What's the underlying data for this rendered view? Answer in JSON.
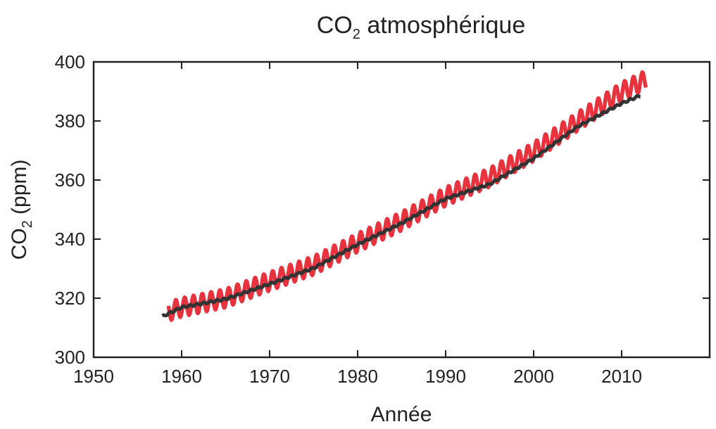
{
  "chart_data": {
    "type": "line",
    "title": {
      "main": "CO",
      "sub": "2",
      "rest": " atmosphérique"
    },
    "xlabel": "Année",
    "ylabel": {
      "main": "CO",
      "sub": "2",
      "rest": " (ppm)"
    },
    "xlim": [
      1950,
      2020
    ],
    "ylim": [
      300,
      400
    ],
    "xticks": [
      1950,
      1960,
      1970,
      1980,
      1990,
      2000,
      2010
    ],
    "yticks": [
      300,
      320,
      340,
      360,
      380,
      400
    ],
    "grid": false,
    "legend": "none",
    "series": [
      {
        "style": "monthly-seasonal",
        "color": "#e8333f",
        "x": [
          1958.5,
          1960,
          1965,
          1970,
          1975,
          1980,
          1985,
          1990,
          1995,
          2000,
          2005,
          2010,
          2012.8
        ],
        "y": [
          315.5,
          316.9,
          320.0,
          325.7,
          331.1,
          338.8,
          346.1,
          354.4,
          360.9,
          369.6,
          379.8,
          389.9,
          394.0
        ],
        "seasonal_amplitude_ppm": 3.2
      },
      {
        "style": "trend",
        "color": "#333333",
        "x": [
          1957.8,
          1960,
          1965,
          1970,
          1975,
          1980,
          1985,
          1990,
          1995,
          2000,
          2005,
          2010,
          2012.2
        ],
        "y": [
          313.8,
          316.9,
          319.7,
          324.8,
          330.2,
          338.2,
          345.4,
          353.7,
          358.6,
          367.3,
          378.1,
          386.0,
          388.7
        ]
      }
    ]
  }
}
